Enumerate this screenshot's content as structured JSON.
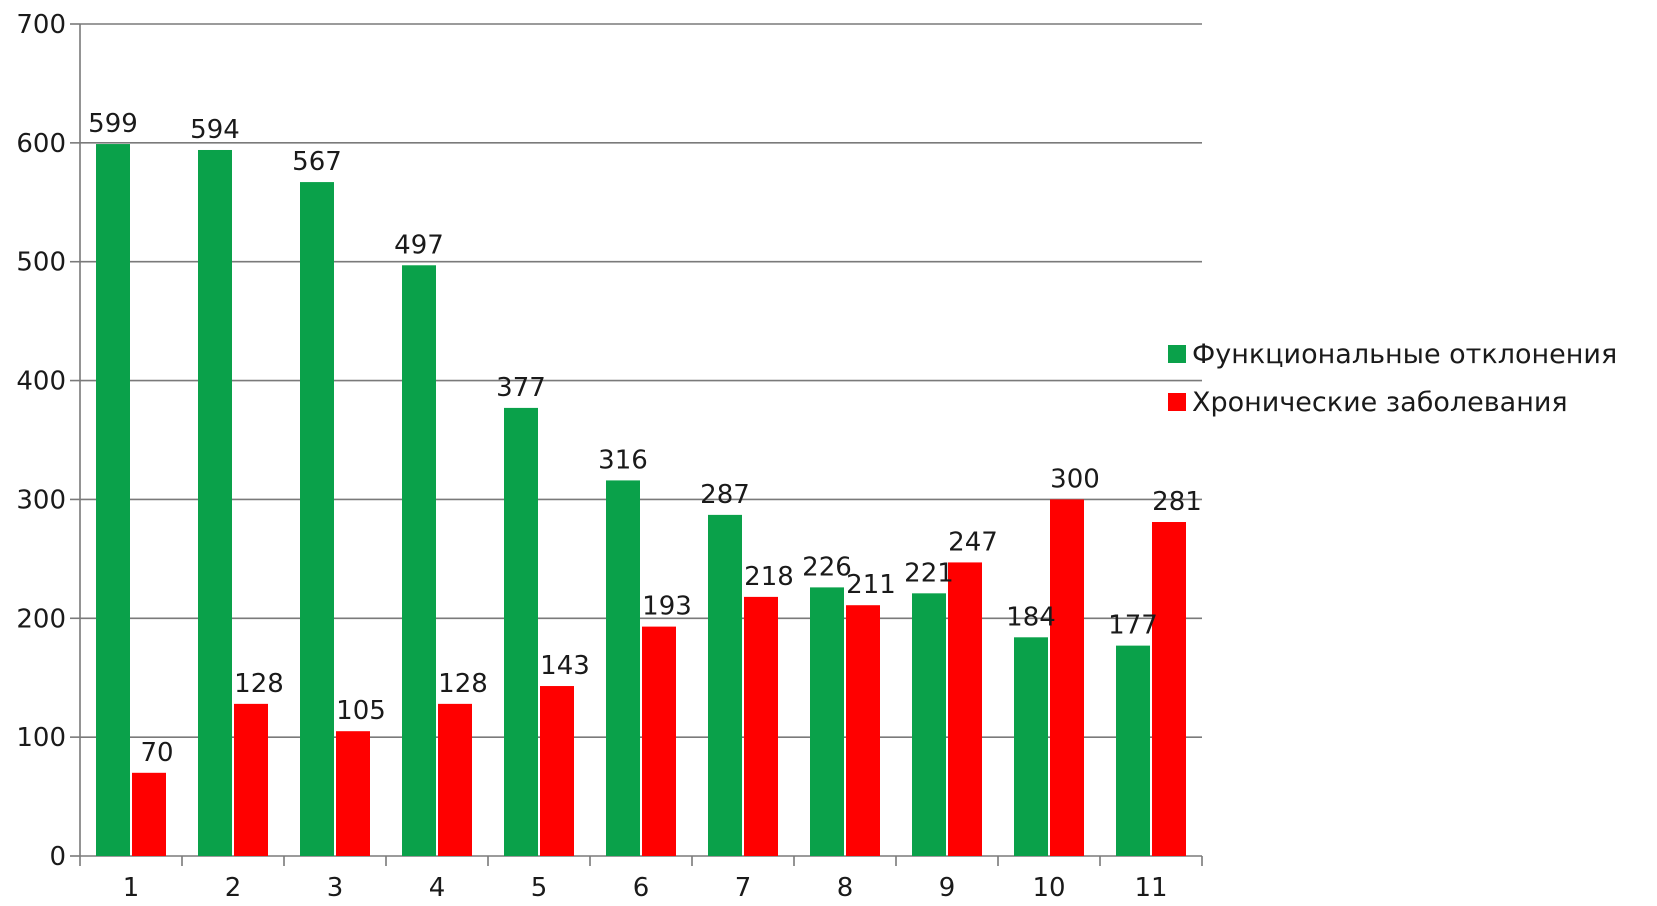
{
  "chart_data": {
    "type": "bar",
    "categories": [
      "1",
      "2",
      "3",
      "4",
      "5",
      "6",
      "7",
      "8",
      "9",
      "10",
      "11"
    ],
    "series": [
      {
        "name": "Функциональные отклонения",
        "color": "#0aa14a",
        "values": [
          599,
          594,
          567,
          497,
          377,
          316,
          287,
          226,
          221,
          184,
          177
        ]
      },
      {
        "name": "Хронические заболевания",
        "color": "#ff0000",
        "values": [
          70,
          128,
          105,
          128,
          143,
          193,
          218,
          211,
          247,
          300,
          281
        ]
      }
    ],
    "title": "",
    "xlabel": "",
    "ylabel": "",
    "ylim": [
      0,
      700
    ],
    "yticks": [
      "0",
      "100",
      "200",
      "300",
      "400",
      "500",
      "600",
      "700"
    ],
    "grid": true,
    "legend_position": "right",
    "data_labels": true
  }
}
